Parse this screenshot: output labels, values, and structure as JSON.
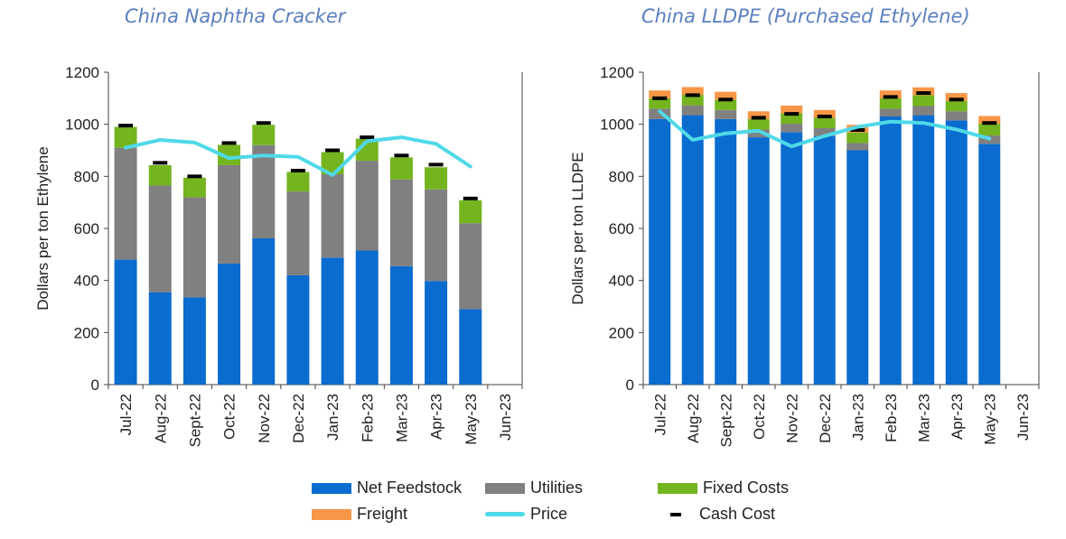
{
  "chart_data": [
    {
      "type": "bar",
      "stacked": true,
      "title": "China Naphtha Cracker",
      "ylabel": "Dollars  per ton Ethylene",
      "ylim": [
        0,
        1200
      ],
      "yticks": [
        0,
        200,
        400,
        600,
        800,
        1000,
        1200
      ],
      "categories": [
        "Jul-22",
        "Aug-22",
        "Sept-22",
        "Oct-22",
        "Nov-22",
        "Dec-22",
        "Jan-23",
        "Feb-23",
        "Mar-23",
        "Apr-23",
        "May-23",
        "Jun-23"
      ],
      "series": [
        {
          "name": "Net Feedstock",
          "values": [
            480,
            355,
            335,
            465,
            562,
            420,
            488,
            515,
            455,
            398,
            290,
            null
          ]
        },
        {
          "name": "Utilities",
          "values": [
            430,
            410,
            385,
            378,
            358,
            322,
            320,
            345,
            333,
            352,
            330,
            null
          ]
        },
        {
          "name": "Fixed Costs",
          "values": [
            80,
            78,
            75,
            78,
            78,
            75,
            85,
            85,
            85,
            85,
            88,
            null
          ]
        },
        {
          "name": "Freight",
          "values": [
            0,
            0,
            0,
            0,
            0,
            0,
            0,
            0,
            0,
            0,
            0,
            null
          ]
        }
      ],
      "cash_cost": [
        995,
        852,
        800,
        928,
        1005,
        822,
        900,
        950,
        880,
        845,
        715,
        null
      ],
      "price": [
        910,
        940,
        930,
        870,
        880,
        875,
        805,
        935,
        950,
        925,
        838,
        null
      ]
    },
    {
      "type": "bar",
      "stacked": true,
      "title": "China LLDPE (Purchased Ethylene)",
      "ylabel": "Dollars  per ton LLDPE",
      "ylim": [
        0,
        1200
      ],
      "yticks": [
        0,
        200,
        400,
        600,
        800,
        1000,
        1200
      ],
      "categories": [
        "Jul-22",
        "Aug-22",
        "Sept-22",
        "Oct-22",
        "Nov-22",
        "Dec-22",
        "Jan-23",
        "Feb-23",
        "Mar-23",
        "Apr-23",
        "May-23",
        "Jun-23"
      ],
      "series": [
        {
          "name": "Net Feedstock",
          "values": [
            1020,
            1035,
            1020,
            950,
            970,
            955,
            900,
            1030,
            1035,
            1015,
            925,
            null
          ]
        },
        {
          "name": "Utilities",
          "values": [
            40,
            38,
            35,
            30,
            32,
            30,
            28,
            30,
            35,
            35,
            32,
            null
          ]
        },
        {
          "name": "Fixed Costs",
          "values": [
            40,
            40,
            40,
            40,
            40,
            40,
            40,
            40,
            42,
            40,
            45,
            null
          ]
        },
        {
          "name": "Freight",
          "values": [
            30,
            30,
            30,
            30,
            30,
            30,
            30,
            30,
            30,
            30,
            30,
            null
          ]
        }
      ],
      "cash_cost": [
        1100,
        1112,
        1095,
        1025,
        1040,
        1030,
        978,
        1105,
        1120,
        1095,
        1005,
        null
      ],
      "price": [
        1050,
        940,
        965,
        975,
        915,
        955,
        990,
        1010,
        1005,
        980,
        945,
        null
      ]
    }
  ],
  "legend": {
    "items": [
      {
        "label": "Net Feedstock",
        "color": "#0a6ccf",
        "kind": "bar"
      },
      {
        "label": "Utilities",
        "color": "#808080",
        "kind": "bar"
      },
      {
        "label": "Fixed Costs",
        "color": "#74b51f",
        "kind": "bar"
      },
      {
        "label": "Freight",
        "color": "#f79646",
        "kind": "bar"
      },
      {
        "label": "Price",
        "color": "#4fd9e8",
        "kind": "line"
      },
      {
        "label": "Cash Cost",
        "color": "#000000",
        "kind": "marker"
      }
    ]
  },
  "colors": {
    "net_feedstock": "#0a6ccf",
    "utilities": "#808080",
    "fixed_costs": "#74b51f",
    "freight": "#f79646",
    "price": "#4fd9e8",
    "cash_cost": "#000000"
  }
}
